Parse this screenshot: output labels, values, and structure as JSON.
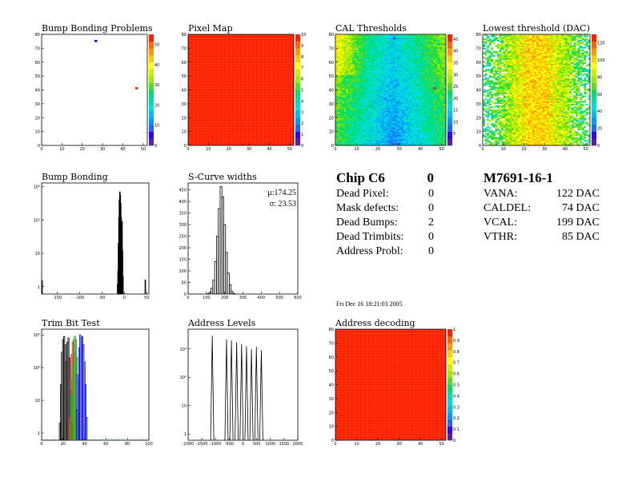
{
  "colors": {
    "palette": [
      "#5b1fa0",
      "#3300ff",
      "#2266ff",
      "#0099ff",
      "#00bbee",
      "#00dddd",
      "#00ddaa",
      "#00dd66",
      "#55dd22",
      "#99ee00",
      "#ccee00",
      "#ffff00",
      "#ffcc00",
      "#ff9900",
      "#ff6600",
      "#ff2200"
    ],
    "line": "#000000"
  },
  "chart_data": [
    {
      "id": "bump_problems",
      "type": "heatmap",
      "title": "Bump Bonding Problems",
      "x_ticks": [
        "0",
        "10",
        "20",
        "30",
        "40",
        "50"
      ],
      "y_ticks": [
        "0",
        "10",
        "20",
        "30",
        "40",
        "50",
        "60",
        "70",
        "80"
      ],
      "xlim": [
        0,
        52
      ],
      "ylim": [
        0,
        80
      ],
      "z_ticks": [
        "0",
        "10",
        "20",
        "30",
        "40",
        "50"
      ],
      "zlim": [
        0,
        55
      ],
      "fill": "none",
      "sparse_points": [
        [
          26,
          76,
          5
        ],
        [
          46,
          42,
          53
        ]
      ]
    },
    {
      "id": "pixel_map",
      "type": "heatmap",
      "title": "Pixel Map",
      "x_ticks": [
        "0",
        "10",
        "20",
        "30",
        "40",
        "50"
      ],
      "y_ticks": [
        "0",
        "10",
        "20",
        "30",
        "40",
        "50",
        "60",
        "70",
        "80"
      ],
      "xlim": [
        0,
        52
      ],
      "ylim": [
        0,
        80
      ],
      "z_ticks": [
        "0",
        "1",
        "2",
        "3",
        "4",
        "5",
        "6",
        "7",
        "8",
        "9",
        "10"
      ],
      "zlim": [
        0,
        10
      ],
      "fill": "uniform",
      "fill_value": 10
    },
    {
      "id": "cal_thresholds",
      "type": "heatmap",
      "title": "CAL Thresholds",
      "x_ticks": [
        "0",
        "10",
        "20",
        "30",
        "40",
        "50"
      ],
      "y_ticks": [
        "0",
        "10",
        "20",
        "30",
        "40",
        "50",
        "60",
        "70",
        "80"
      ],
      "xlim": [
        0,
        52
      ],
      "ylim": [
        0,
        80
      ],
      "z_ticks": [
        "5",
        "10",
        "15",
        "20",
        "25",
        "30",
        "35",
        "40",
        "45"
      ],
      "zlim": [
        0,
        47
      ],
      "fill": "cal",
      "sparse_points": [
        [
          27,
          78,
          6
        ],
        [
          46,
          42,
          45
        ]
      ]
    },
    {
      "id": "lowest_threshold",
      "type": "heatmap",
      "title": "Lowest threshold (DAC)",
      "x_ticks": [
        "0",
        "10",
        "20",
        "30",
        "40",
        "50"
      ],
      "y_ticks": [
        "0",
        "10",
        "20",
        "30",
        "40",
        "50",
        "60",
        "70",
        "80"
      ],
      "xlim": [
        0,
        52
      ],
      "ylim": [
        0,
        80
      ],
      "z_ticks": [
        "0",
        "20",
        "40",
        "60",
        "80",
        "100",
        "120"
      ],
      "zlim": [
        0,
        130
      ],
      "fill": "lowest"
    },
    {
      "id": "bump_bonding",
      "type": "histogram",
      "title": "Bump Bonding",
      "x_ticks": [
        [
          -150,
          "-150"
        ],
        [
          -100,
          "-100"
        ],
        [
          -50,
          "-50"
        ],
        [
          0,
          "0"
        ],
        [
          50,
          "50"
        ]
      ],
      "xlim": [
        -185,
        55
      ],
      "y_ticks": [
        [
          1,
          "1"
        ],
        [
          10,
          "10"
        ],
        [
          100,
          "10²"
        ],
        [
          1000,
          "10³"
        ]
      ],
      "ylog": true,
      "ylim": [
        0.6,
        1300
      ],
      "bars": [
        [
          -184,
          1.5
        ],
        [
          -15,
          1.2
        ],
        [
          -14,
          3
        ],
        [
          -13,
          20
        ],
        [
          -12,
          120
        ],
        [
          -11,
          400
        ],
        [
          -10,
          700
        ],
        [
          -9,
          560
        ],
        [
          -8,
          320
        ],
        [
          -7,
          120
        ],
        [
          -6,
          40
        ],
        [
          -5,
          90
        ],
        [
          -4,
          12
        ],
        [
          -3,
          2
        ],
        [
          47,
          1.6
        ]
      ]
    },
    {
      "id": "scurve_widths",
      "type": "histogram",
      "title": "S-Curve widths",
      "x_ticks": [
        [
          0,
          "0"
        ],
        [
          100,
          "100"
        ],
        [
          200,
          "200"
        ],
        [
          300,
          "300"
        ],
        [
          400,
          "400"
        ],
        [
          500,
          "500"
        ],
        [
          600,
          "600"
        ]
      ],
      "xlim": [
        0,
        600
      ],
      "y_ticks": [
        [
          0,
          "0"
        ],
        [
          50,
          "50"
        ],
        [
          100,
          "100"
        ],
        [
          150,
          "150"
        ],
        [
          200,
          "200"
        ],
        [
          250,
          "250"
        ],
        [
          300,
          "300"
        ],
        [
          350,
          "350"
        ],
        [
          400,
          "400"
        ],
        [
          450,
          "450"
        ]
      ],
      "ylim": [
        0,
        480
      ],
      "bars": [
        [
          110,
          2
        ],
        [
          120,
          8
        ],
        [
          130,
          25
        ],
        [
          140,
          60
        ],
        [
          150,
          140
        ],
        [
          160,
          250
        ],
        [
          170,
          370
        ],
        [
          180,
          465
        ],
        [
          190,
          420
        ],
        [
          200,
          300
        ],
        [
          210,
          180
        ],
        [
          220,
          90
        ],
        [
          230,
          40
        ],
        [
          240,
          12
        ],
        [
          250,
          3
        ]
      ],
      "stats": [
        "μ:174.25",
        "σ: 23.53"
      ]
    },
    {
      "id": "trim_bit_test",
      "type": "histogram",
      "title": "Trim Bit Test",
      "x_ticks": [
        [
          0,
          "0"
        ],
        [
          20,
          "20"
        ],
        [
          40,
          "40"
        ],
        [
          60,
          "60"
        ],
        [
          80,
          "80"
        ],
        [
          100,
          "100"
        ]
      ],
      "xlim": [
        0,
        100
      ],
      "y_ticks": [
        [
          1,
          "1"
        ],
        [
          10,
          "10"
        ],
        [
          100,
          "10²"
        ],
        [
          1000,
          "10³"
        ]
      ],
      "ylog": true,
      "ylim": [
        0.6,
        1500
      ],
      "series": [
        {
          "color": "#000000",
          "bars": [
            [
              17,
              2
            ],
            [
              18,
              30
            ],
            [
              19,
              300
            ],
            [
              20,
              700
            ],
            [
              21,
              900
            ],
            [
              22,
              500
            ],
            [
              23,
              150
            ],
            [
              24,
              600
            ],
            [
              25,
              800
            ],
            [
              26,
              200
            ],
            [
              27,
              20
            ],
            [
              28,
              2
            ]
          ]
        },
        {
          "color": "#ff0000",
          "bars": [
            [
              26,
              3
            ],
            [
              27,
              40
            ],
            [
              28,
              250
            ],
            [
              29,
              600
            ],
            [
              30,
              700
            ],
            [
              31,
              300
            ],
            [
              32,
              60
            ],
            [
              33,
              5
            ]
          ]
        },
        {
          "color": "#00aa00",
          "bars": [
            [
              27,
              2
            ],
            [
              28,
              15
            ],
            [
              29,
              120
            ],
            [
              30,
              500
            ],
            [
              31,
              900
            ],
            [
              32,
              700
            ],
            [
              33,
              200
            ],
            [
              34,
              40
            ],
            [
              35,
              4
            ]
          ]
        },
        {
          "color": "#0000ff",
          "bars": [
            [
              33,
              5
            ],
            [
              34,
              60
            ],
            [
              35,
              400
            ],
            [
              36,
              1000
            ],
            [
              37,
              800
            ],
            [
              38,
              900
            ],
            [
              39,
              500
            ],
            [
              40,
              150
            ],
            [
              41,
              30
            ],
            [
              42,
              3
            ]
          ]
        }
      ],
      "baseline_dots": true
    },
    {
      "id": "address_levels",
      "type": "histogram",
      "title": "Address Levels",
      "x_ticks": [
        [
          -2000,
          "-2000"
        ],
        [
          -1500,
          "-1500"
        ],
        [
          -1000,
          "-1000"
        ],
        [
          -500,
          "-500"
        ],
        [
          0,
          "0"
        ],
        [
          500,
          "500"
        ],
        [
          1000,
          "1000"
        ],
        [
          1500,
          "1500"
        ],
        [
          2000,
          "2000"
        ]
      ],
      "xlim": [
        -2000,
        2000
      ],
      "y_ticks": [
        [
          1,
          "1"
        ],
        [
          10,
          "10"
        ],
        [
          100,
          "10²"
        ],
        [
          1000,
          "10³"
        ]
      ],
      "ylog": true,
      "ylim": [
        0.6,
        5000
      ],
      "spikes": [
        [
          -1120,
          3000
        ],
        [
          -600,
          2200
        ],
        [
          -420,
          2000
        ],
        [
          -230,
          1700
        ],
        [
          -50,
          1500
        ],
        [
          130,
          1250
        ],
        [
          310,
          1000
        ],
        [
          490,
          1200
        ],
        [
          670,
          900
        ]
      ]
    },
    {
      "id": "address_decoding",
      "type": "heatmap",
      "title": "Address decoding",
      "x_ticks": [
        "0",
        "10",
        "20",
        "30",
        "40",
        "50"
      ],
      "y_ticks": [
        "0",
        "10",
        "20",
        "30",
        "40",
        "50",
        "60",
        "70",
        "80"
      ],
      "xlim": [
        0,
        52
      ],
      "ylim": [
        0,
        80
      ],
      "z_ticks": [
        "0",
        "0.1",
        "0.2",
        "0.3",
        "0.4",
        "0.5",
        "0.6",
        "0.7",
        "0.8",
        "0.9",
        "1"
      ],
      "zlim": [
        0,
        1
      ],
      "fill": "uniform",
      "fill_value": 1
    }
  ],
  "summary": {
    "chip_label": "Chip C6",
    "chip_value": "0",
    "rows": [
      {
        "label": "Dead Pixel:",
        "value": "0"
      },
      {
        "label": "Mask defects:",
        "value": "0"
      },
      {
        "label": "Dead Bumps:",
        "value": "2"
      },
      {
        "label": "Dead Trimbits:",
        "value": "0"
      },
      {
        "label": "Address Probl:",
        "value": "0"
      }
    ]
  },
  "module": {
    "name": "M7691-16-1",
    "rows": [
      {
        "label": "VANA:",
        "value": "122 DAC"
      },
      {
        "label": "CALDEL:",
        "value": "74 DAC"
      },
      {
        "label": "VCAL:",
        "value": "199 DAC"
      },
      {
        "label": "VTHR:",
        "value": "85 DAC"
      }
    ]
  },
  "timestamp": "Fri Dec 16 18:21:03 2005"
}
